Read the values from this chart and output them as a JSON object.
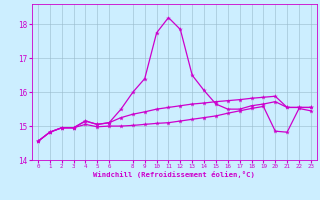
{
  "xlabel": "Windchill (Refroidissement éolien,°C)",
  "bg_color": "#cceeff",
  "line_color": "#cc00cc",
  "grid_color": "#99bbcc",
  "xlim": [
    -0.5,
    23.5
  ],
  "ylim": [
    14.0,
    18.6
  ],
  "yticks": [
    14,
    15,
    16,
    17,
    18
  ],
  "xticks": [
    0,
    1,
    2,
    3,
    4,
    5,
    6,
    8,
    9,
    10,
    11,
    12,
    13,
    14,
    15,
    16,
    17,
    18,
    19,
    20,
    21,
    22,
    23
  ],
  "series": {
    "spike": [
      14.55,
      14.82,
      14.95,
      14.95,
      15.15,
      15.05,
      15.1,
      15.5,
      16.0,
      16.4,
      17.75,
      18.2,
      17.85,
      16.5,
      16.05,
      15.65,
      15.5,
      15.5,
      15.6,
      15.65,
      15.72,
      15.55,
      15.55,
      15.55
    ],
    "upper": [
      14.55,
      14.82,
      14.95,
      14.95,
      15.15,
      15.05,
      15.1,
      15.25,
      15.35,
      15.42,
      15.5,
      15.55,
      15.6,
      15.65,
      15.68,
      15.72,
      15.75,
      15.78,
      15.82,
      15.85,
      15.88,
      15.55,
      15.55,
      15.55
    ],
    "lower": [
      14.55,
      14.82,
      14.95,
      14.95,
      15.05,
      14.98,
      15.0,
      15.0,
      15.02,
      15.05,
      15.08,
      15.1,
      15.15,
      15.2,
      15.25,
      15.3,
      15.38,
      15.45,
      15.52,
      15.58,
      14.85,
      14.82,
      15.52,
      15.45
    ]
  },
  "markersize": 3.5
}
